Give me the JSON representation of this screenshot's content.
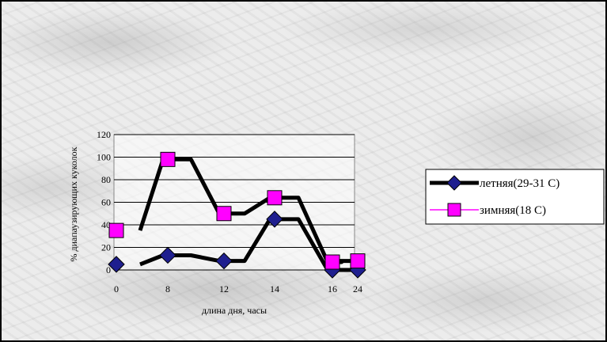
{
  "chart_data": {
    "type": "line",
    "categories": [
      "0",
      "8",
      "12",
      "14",
      "16",
      "24"
    ],
    "xlabel": "длина дня, часы",
    "ylabel": "% диапаузирующих куколок",
    "ylim": [
      0,
      120
    ],
    "yticks": [
      0,
      20,
      40,
      60,
      80,
      100,
      120
    ],
    "grid": "horizontal",
    "legend_position": "right",
    "series": [
      {
        "name": "летняя(29-31 С)",
        "marker": "diamond",
        "marker_color": "#1f1f8f",
        "line_color": "#000000",
        "values": [
          5,
          13,
          8,
          45,
          0,
          0
        ]
      },
      {
        "name": "зимняя(18 С)",
        "marker": "square",
        "marker_color": "#ff00ff",
        "line_color": "#000000",
        "values": [
          35,
          98,
          50,
          64,
          7,
          8
        ]
      }
    ]
  }
}
